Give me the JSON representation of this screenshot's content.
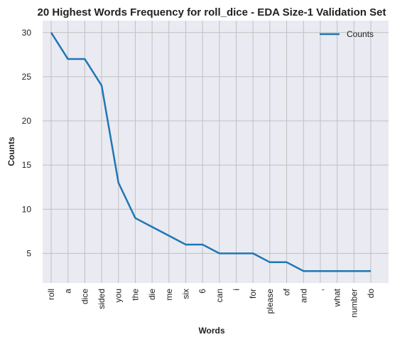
{
  "chart_data": {
    "type": "line",
    "title": "20 Highest Words Frequency for roll_dice - EDA Size-1 Validation Set",
    "xlabel": "Words",
    "ylabel": "Counts",
    "categories": [
      "roll",
      "a",
      "dice",
      "sided",
      "you",
      "the",
      "die",
      "me",
      "six",
      "6",
      "can",
      "i",
      "for",
      "please",
      "of",
      "and",
      ",",
      "what",
      "number",
      "do"
    ],
    "series": [
      {
        "name": "Counts",
        "values": [
          30,
          27,
          27,
          24,
          13,
          9,
          8,
          7,
          6,
          6,
          5,
          5,
          5,
          4,
          4,
          3,
          3,
          3,
          3,
          3
        ],
        "color": "#1f77b4"
      }
    ],
    "ylim": [
      1.65,
      31.35
    ],
    "yticks": [
      5,
      10,
      15,
      20,
      25,
      30
    ],
    "grid": true,
    "legend": "top-right",
    "background_color": "#eaeaf2",
    "grid_color": "#c0c0c0"
  }
}
